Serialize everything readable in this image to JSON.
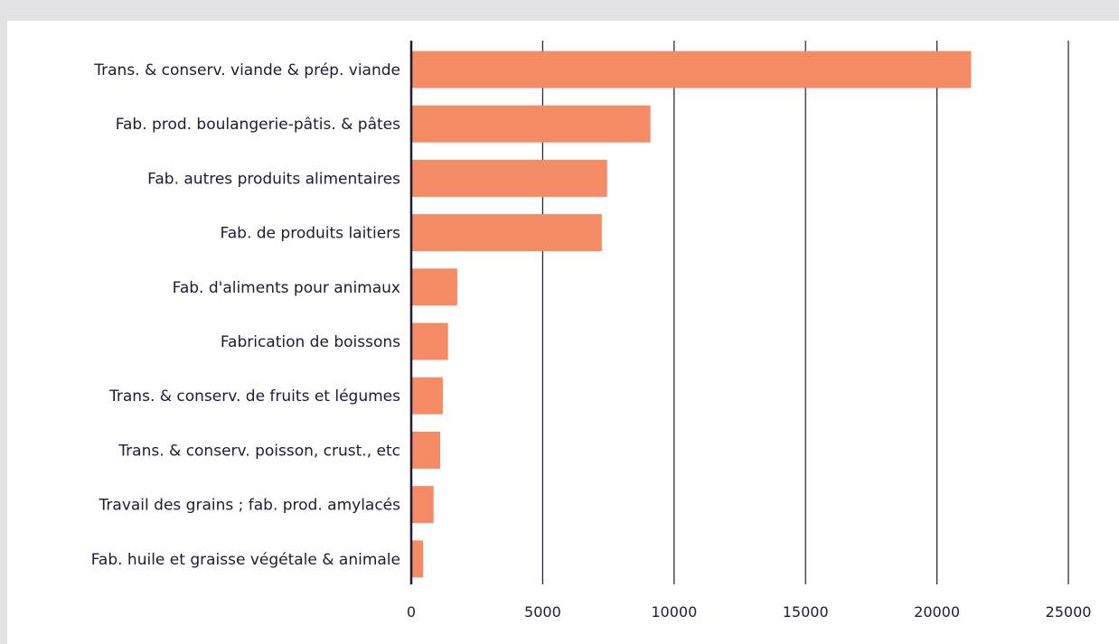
{
  "chart_data": {
    "type": "bar",
    "orientation": "horizontal",
    "categories": [
      "Trans. & conserv. viande & prép. viande",
      "Fab. prod. boulangerie-pâtis. & pâtes",
      "Fab. autres produits alimentaires",
      "Fab. de produits laitiers",
      "Fab. d'aliments pour animaux",
      "Fabrication de boissons",
      "Trans. & conserv. de fruits et légumes",
      "Trans. & conserv. poisson, crust., etc",
      "Travail des grains ; fab. prod. amylacés",
      "Fab. huile et graisse végétale & animale"
    ],
    "values": [
      21300,
      9100,
      7450,
      7250,
      1750,
      1400,
      1200,
      1100,
      850,
      450
    ],
    "xlim": [
      0,
      25000
    ],
    "ticks": [
      0,
      5000,
      10000,
      15000,
      20000,
      25000
    ],
    "tick_labels": [
      "0",
      "5000",
      "10000",
      "15000",
      "20000",
      "25000"
    ],
    "grid": "vertical",
    "bar_color": "#f58b64",
    "title": "",
    "xlabel": "",
    "ylabel": ""
  }
}
